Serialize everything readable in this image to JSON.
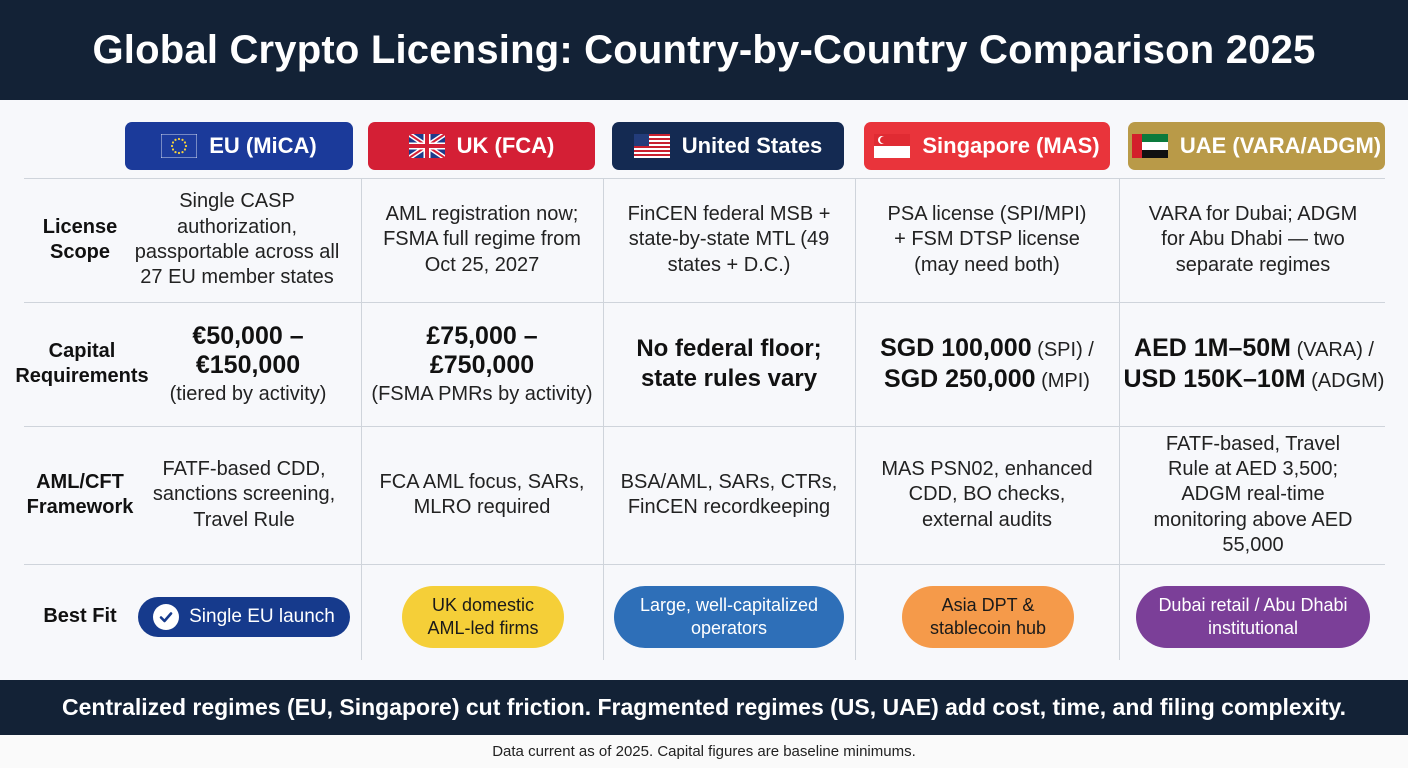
{
  "title": "Global Crypto Licensing: Country-by-Country Comparison 2025",
  "columns": [
    {
      "label": "EU (MiCA)",
      "color": "#1b3a9a",
      "flag": "eu-flag-icon"
    },
    {
      "label": "UK (FCA)",
      "color": "#d41f35",
      "flag": "uk-flag-icon"
    },
    {
      "label": "United States",
      "color": "#142a52",
      "flag": "us-flag-icon"
    },
    {
      "label": "Singapore (MAS)",
      "color": "#e9343b",
      "flag": "singapore-flag-icon"
    },
    {
      "label": "UAE (VARA/ADGM)",
      "color": "#b99a48",
      "flag": "uae-flag-icon"
    }
  ],
  "rows": {
    "license_scope": {
      "label_line1": "License",
      "label_line2": "Scope",
      "cells": [
        "Single CASP authorization, passportable across all 27 EU member states",
        "AML registration now; FSMA full regime from Oct 25, 2027",
        "FinCEN federal MSB + state-by-state MTL (49 states + D.C.)",
        "PSA license (SPI/MPI) + FSM DTSP license (may need both)",
        "VARA for Dubai; ADGM for Abu Dhabi — two separate regimes"
      ]
    },
    "capital": {
      "label_line1": "Capital",
      "label_line2": "Requirements",
      "eu": {
        "line1": "€50,000 –",
        "line2": "€150,000",
        "line3": "(tiered by activity)"
      },
      "uk": {
        "line1": "£75,000 –",
        "line2": "£750,000",
        "line3": "(FSMA PMRs by activity)"
      },
      "us": {
        "line1": "No federal floor;",
        "line2": "state rules vary"
      },
      "sg": {
        "amount1": "SGD 100,000",
        "note1": " (SPI) /",
        "amount2": "SGD 250,000",
        "note2": " (MPI)"
      },
      "uae": {
        "amount1": "AED 1M–50M",
        "note1": " (VARA) /",
        "amount2": "USD 150K–10M",
        "note2": " (ADGM)"
      }
    },
    "aml": {
      "label_line1": "AML/CFT",
      "label_line2": "Framework",
      "cells": [
        "FATF-based CDD, sanctions screening, Travel Rule",
        "FCA AML focus, SARs, MLRO required",
        "BSA/AML, SARs, CTRs, FinCEN recordkeeping",
        "MAS PSN02, enhanced CDD, BO checks, external audits",
        "FATF-based, Travel Rule at AED 3,500; ADGM real-time monitoring above AED 55,000"
      ]
    },
    "best_fit": {
      "label": "Best Fit",
      "pills": [
        {
          "text": "Single EU launch",
          "color": "#163a8c",
          "text_color": "#ffffff"
        },
        {
          "text": "UK domestic AML-led firms",
          "color": "#f5cf38",
          "text_color": "#1a1a1a"
        },
        {
          "text": "Large, well-capitalized operators",
          "color": "#2e6fb8",
          "text_color": "#ffffff"
        },
        {
          "text": "Asia DPT & stablecoin hub",
          "color": "#f59a4a",
          "text_color": "#1a1a1a"
        },
        {
          "text": "Dubai retail / Abu Dhabi institutional",
          "color": "#7b3f98",
          "text_color": "#ffffff"
        }
      ]
    }
  },
  "footer": "Centralized regimes (EU, Singapore) cut friction. Fragmented regimes (US, UAE) add cost, time, and filing complexity.",
  "note": "Data current as of 2025. Capital figures are baseline minimums."
}
